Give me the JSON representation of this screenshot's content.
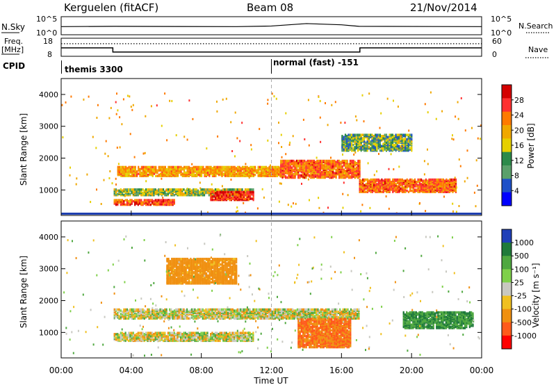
{
  "header": {
    "radar": "Kerguelen (fitACF)",
    "beam": "Beam 08",
    "date": "21/Nov/2014"
  },
  "panels": {
    "nsky": {
      "label": "N.Sky",
      "left_ticks": [
        "10^5",
        "10^0"
      ],
      "right_ticks": [
        "10^5",
        "10^0"
      ],
      "right_label": "N.Search"
    },
    "freq": {
      "label_line1": "Freq.",
      "label_line2": "[MHz]",
      "left_ticks": [
        "18",
        "8"
      ],
      "right_ticks": [
        "60",
        "0"
      ],
      "right_label": "Nave"
    },
    "cpid": {
      "label": "CPID",
      "seg1": "themis 3300",
      "seg2": "normal (fast) -151"
    }
  },
  "power_panel": {
    "ylabel": "Slant Range [km]",
    "colorbar_label": "Power [dB]",
    "colorbar_ticks": [
      "28",
      "24",
      "20",
      "16",
      "12",
      "8",
      "4"
    ],
    "colors": [
      "#d40000",
      "#ff3030",
      "#ff7a00",
      "#f0a800",
      "#e6d000",
      "#2c8a4a",
      "#5aa06a",
      "#1e50c8",
      "#0000ff"
    ]
  },
  "velocity_panel": {
    "ylabel": "Slant Range [km]",
    "colorbar_label": "Velocity [m s⁻¹]",
    "colorbar_ticks": [
      "1000",
      "500",
      "100",
      "25",
      "-25",
      "-100",
      "-500",
      "-1000"
    ],
    "colors": [
      "#1f3fb8",
      "#1f7a3a",
      "#4fa840",
      "#7fd04a",
      "#c8c8c0",
      "#f0c020",
      "#f09010",
      "#ff5a1a",
      "#ff0000"
    ]
  },
  "xaxis": {
    "label": "Time UT",
    "ticks": [
      "00:00",
      "04:00",
      "08:00",
      "12:00",
      "16:00",
      "20:00",
      "00:00"
    ]
  },
  "chart_data": {
    "type": "heatmap",
    "xlabel": "Time UT",
    "ylabel": "Slant Range [km]",
    "x_range_hours": [
      0,
      24
    ],
    "y_range_km": [
      200,
      4500
    ],
    "y_ticks_km": [
      1000,
      2000,
      3000,
      4000
    ],
    "nsky": {
      "scale": "log",
      "series": [
        {
          "name": "N.Sky",
          "points": [
            [
              0,
              2.2
            ],
            [
              3,
              2.3
            ],
            [
              10,
              2.2
            ],
            [
              12,
              2.4
            ],
            [
              14,
              3.2
            ],
            [
              16,
              2.8
            ],
            [
              17,
              2.3
            ],
            [
              24,
              2.2
            ]
          ]
        }
      ]
    },
    "frequency": {
      "units": "MHz",
      "series": [
        {
          "name": "Freq.",
          "points": [
            [
              0,
              12.6
            ],
            [
              2.95,
              12.6
            ],
            [
              2.95,
              9.9
            ],
            [
              17.05,
              9.9
            ],
            [
              17.05,
              12.6
            ],
            [
              24,
              12.6
            ]
          ]
        },
        {
          "name": "Nave",
          "style": "dotted",
          "points": [
            [
              0,
              44
            ],
            [
              24,
              44
            ]
          ]
        }
      ]
    },
    "cpid_segments": [
      {
        "label": "themis 3300",
        "start_hour": 0,
        "end_hour": 12
      },
      {
        "label": "normal (fast) -151",
        "start_hour": 12,
        "end_hour": 24
      }
    ],
    "power_bands": [
      {
        "t0": 3.2,
        "t1": 12.5,
        "km0": 1400,
        "km1": 1700,
        "power_db": 18
      },
      {
        "t0": 12.5,
        "t1": 17.0,
        "km0": 1350,
        "km1": 1900,
        "power_db": 22
      },
      {
        "t0": 3.0,
        "t1": 6.5,
        "km0": 500,
        "km1": 650,
        "power_db": 24
      },
      {
        "t0": 3.0,
        "t1": 11.0,
        "km0": 800,
        "km1": 1000,
        "power_db": 12
      },
      {
        "t0": 8.5,
        "t1": 11.0,
        "km0": 650,
        "km1": 900,
        "power_db": 26
      },
      {
        "t0": 17.0,
        "t1": 22.5,
        "km0": 900,
        "km1": 1300,
        "power_db": 22
      },
      {
        "t0": 16.0,
        "t1": 20.0,
        "km0": 2200,
        "km1": 2700,
        "power_db": 10
      }
    ],
    "velocity_bands": [
      {
        "t0": 3.0,
        "t1": 17.0,
        "km0": 1400,
        "km1": 1700,
        "velocity": 0
      },
      {
        "t0": 3.0,
        "t1": 11.0,
        "km0": 700,
        "km1": 950,
        "velocity": 0
      },
      {
        "t0": 13.5,
        "t1": 16.5,
        "km0": 500,
        "km1": 1400,
        "velocity": -300
      },
      {
        "t0": 6.0,
        "t1": 10.0,
        "km0": 2500,
        "km1": 3300,
        "velocity": -150
      },
      {
        "t0": 19.5,
        "t1": 23.5,
        "km0": 1100,
        "km1": 1600,
        "velocity": 300
      }
    ]
  }
}
